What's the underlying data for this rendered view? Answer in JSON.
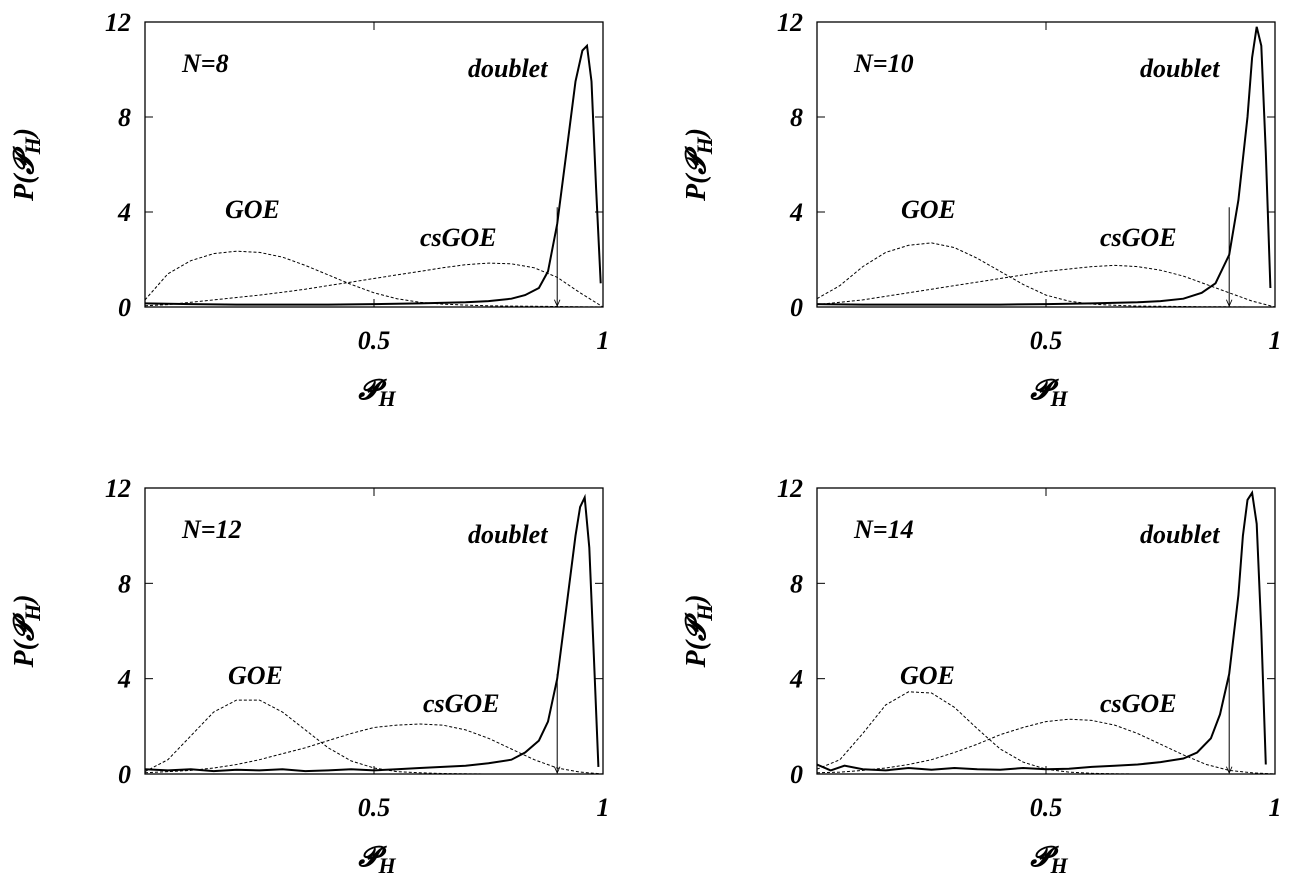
{
  "chart_data": [
    {
      "type": "line",
      "panel_label": "N=8",
      "xlabel": "𝓟H",
      "ylabel": "P(𝓟H)",
      "xlim": [
        0,
        1
      ],
      "ylim": [
        0,
        12
      ],
      "xticks": [
        "0.5",
        "1"
      ],
      "yticks": [
        "0",
        "4",
        "8",
        "12"
      ],
      "annotations": [
        "GOE",
        "csGOE",
        "doublet"
      ],
      "arrow": {
        "x": 0.9,
        "y_from": 4.2,
        "y_to": 0
      },
      "series": [
        {
          "style": "dashed",
          "x": [
            0,
            0.05,
            0.1,
            0.15,
            0.2,
            0.25,
            0.3,
            0.35,
            0.4,
            0.45,
            0.5,
            0.55,
            0.6,
            0.65,
            0.7,
            0.75,
            0.8,
            0.85,
            0.9,
            0.95,
            1.0
          ],
          "y": [
            0.3,
            1.4,
            1.95,
            2.25,
            2.35,
            2.3,
            2.1,
            1.75,
            1.35,
            0.95,
            0.6,
            0.35,
            0.2,
            0.12,
            0.08,
            0.05,
            0.04,
            0.03,
            0.02,
            0.01,
            0.0
          ]
        },
        {
          "style": "dashed",
          "x": [
            0,
            0.05,
            0.1,
            0.15,
            0.2,
            0.25,
            0.3,
            0.35,
            0.4,
            0.45,
            0.5,
            0.55,
            0.6,
            0.65,
            0.7,
            0.75,
            0.8,
            0.85,
            0.9,
            0.95,
            1.0
          ],
          "y": [
            0.05,
            0.1,
            0.2,
            0.3,
            0.4,
            0.5,
            0.62,
            0.75,
            0.9,
            1.05,
            1.2,
            1.35,
            1.5,
            1.65,
            1.78,
            1.85,
            1.82,
            1.65,
            1.25,
            0.6,
            0.0
          ]
        },
        {
          "style": "solid",
          "x": [
            0,
            0.1,
            0.2,
            0.3,
            0.4,
            0.5,
            0.6,
            0.7,
            0.75,
            0.8,
            0.83,
            0.86,
            0.88,
            0.9,
            0.92,
            0.94,
            0.955,
            0.965,
            0.975,
            0.985,
            0.995
          ],
          "y": [
            0.15,
            0.12,
            0.1,
            0.1,
            0.1,
            0.12,
            0.15,
            0.2,
            0.25,
            0.35,
            0.5,
            0.8,
            1.5,
            3.5,
            6.5,
            9.5,
            10.8,
            11.0,
            9.5,
            5.0,
            1.0
          ]
        }
      ]
    },
    {
      "type": "line",
      "panel_label": "N=10",
      "xlabel": "𝓟H",
      "ylabel": "P(𝓟H)",
      "xlim": [
        0,
        1
      ],
      "ylim": [
        0,
        12
      ],
      "xticks": [
        "0.5",
        "1"
      ],
      "yticks": [
        "0",
        "4",
        "8",
        "12"
      ],
      "annotations": [
        "GOE",
        "csGOE",
        "doublet"
      ],
      "arrow": {
        "x": 0.9,
        "y_from": 4.2,
        "y_to": 0
      },
      "series": [
        {
          "style": "dashed",
          "x": [
            0,
            0.05,
            0.1,
            0.15,
            0.2,
            0.25,
            0.3,
            0.35,
            0.4,
            0.45,
            0.5,
            0.55,
            0.6,
            0.65,
            0.7,
            0.75,
            0.8,
            0.85,
            0.9,
            0.95,
            1.0
          ],
          "y": [
            0.35,
            0.9,
            1.7,
            2.3,
            2.6,
            2.7,
            2.5,
            2.05,
            1.5,
            0.95,
            0.5,
            0.25,
            0.12,
            0.07,
            0.04,
            0.03,
            0.02,
            0.01,
            0.01,
            0.0,
            0.0
          ]
        },
        {
          "style": "dashed",
          "x": [
            0,
            0.05,
            0.1,
            0.15,
            0.2,
            0.25,
            0.3,
            0.35,
            0.4,
            0.45,
            0.5,
            0.55,
            0.6,
            0.65,
            0.7,
            0.75,
            0.8,
            0.85,
            0.9,
            0.95,
            1.0
          ],
          "y": [
            0.1,
            0.2,
            0.3,
            0.45,
            0.6,
            0.75,
            0.9,
            1.05,
            1.2,
            1.35,
            1.5,
            1.6,
            1.7,
            1.75,
            1.7,
            1.55,
            1.3,
            0.95,
            0.6,
            0.25,
            0.0
          ]
        },
        {
          "style": "solid",
          "x": [
            0,
            0.1,
            0.2,
            0.3,
            0.4,
            0.5,
            0.6,
            0.7,
            0.75,
            0.8,
            0.84,
            0.87,
            0.9,
            0.92,
            0.94,
            0.95,
            0.96,
            0.97,
            0.98,
            0.99
          ],
          "y": [
            0.12,
            0.1,
            0.1,
            0.1,
            0.1,
            0.12,
            0.15,
            0.2,
            0.25,
            0.35,
            0.6,
            1.0,
            2.2,
            4.5,
            8.0,
            10.5,
            11.8,
            11.0,
            6.5,
            0.8
          ]
        }
      ]
    },
    {
      "type": "line",
      "panel_label": "N=12",
      "xlabel": "𝓟H",
      "ylabel": "P(𝓟H)",
      "xlim": [
        0,
        1
      ],
      "ylim": [
        0,
        12
      ],
      "xticks": [
        "0.5",
        "1"
      ],
      "yticks": [
        "0",
        "4",
        "8",
        "12"
      ],
      "annotations": [
        "GOE",
        "csGOE",
        "doublet"
      ],
      "arrow": {
        "x": 0.9,
        "y_from": 4.2,
        "y_to": 0
      },
      "series": [
        {
          "style": "dashed",
          "x": [
            0,
            0.05,
            0.1,
            0.15,
            0.2,
            0.25,
            0.3,
            0.35,
            0.4,
            0.45,
            0.5,
            0.55,
            0.6,
            0.65,
            0.7,
            0.75,
            0.8,
            0.85,
            0.9,
            0.95,
            1.0
          ],
          "y": [
            0.1,
            0.6,
            1.6,
            2.6,
            3.1,
            3.1,
            2.6,
            1.85,
            1.1,
            0.55,
            0.25,
            0.1,
            0.05,
            0.02,
            0.01,
            0.0,
            0.0,
            0.0,
            0.0,
            0.0,
            0.0
          ]
        },
        {
          "style": "dashed",
          "x": [
            0,
            0.05,
            0.1,
            0.15,
            0.2,
            0.25,
            0.3,
            0.35,
            0.4,
            0.45,
            0.5,
            0.55,
            0.6,
            0.65,
            0.7,
            0.75,
            0.8,
            0.85,
            0.9,
            0.95,
            1.0
          ],
          "y": [
            0.05,
            0.1,
            0.15,
            0.25,
            0.4,
            0.6,
            0.85,
            1.1,
            1.4,
            1.7,
            1.95,
            2.05,
            2.1,
            2.05,
            1.85,
            1.5,
            1.05,
            0.6,
            0.25,
            0.08,
            0.0
          ]
        },
        {
          "style": "solid",
          "x": [
            0,
            0.05,
            0.1,
            0.15,
            0.2,
            0.25,
            0.3,
            0.35,
            0.4,
            0.45,
            0.5,
            0.55,
            0.6,
            0.65,
            0.7,
            0.75,
            0.8,
            0.83,
            0.86,
            0.88,
            0.9,
            0.92,
            0.94,
            0.95,
            0.96,
            0.97,
            0.98,
            0.99
          ],
          "y": [
            0.2,
            0.15,
            0.2,
            0.12,
            0.18,
            0.15,
            0.2,
            0.12,
            0.15,
            0.2,
            0.15,
            0.2,
            0.25,
            0.3,
            0.35,
            0.45,
            0.6,
            0.9,
            1.4,
            2.2,
            4.0,
            7.0,
            10.0,
            11.2,
            11.6,
            9.5,
            5.0,
            0.3
          ]
        }
      ]
    },
    {
      "type": "line",
      "panel_label": "N=14",
      "xlabel": "𝓟H",
      "ylabel": "P(𝓟H)",
      "xlim": [
        0,
        1
      ],
      "ylim": [
        0,
        12
      ],
      "xticks": [
        "0.5",
        "1"
      ],
      "yticks": [
        "0",
        "4",
        "8",
        "12"
      ],
      "annotations": [
        "GOE",
        "csGOE",
        "doublet"
      ],
      "arrow": {
        "x": 0.9,
        "y_from": 4.2,
        "y_to": 0
      },
      "series": [
        {
          "style": "dashed",
          "x": [
            0,
            0.05,
            0.1,
            0.15,
            0.2,
            0.25,
            0.3,
            0.35,
            0.4,
            0.45,
            0.5,
            0.55,
            0.6,
            0.65,
            0.7,
            0.75,
            0.8,
            0.85,
            0.9,
            0.95,
            1.0
          ],
          "y": [
            0.2,
            0.6,
            1.7,
            2.9,
            3.45,
            3.4,
            2.8,
            1.9,
            1.05,
            0.5,
            0.2,
            0.08,
            0.03,
            0.01,
            0.0,
            0.0,
            0.0,
            0.0,
            0.0,
            0.0,
            0.0
          ]
        },
        {
          "style": "dashed",
          "x": [
            0,
            0.05,
            0.1,
            0.15,
            0.2,
            0.25,
            0.3,
            0.35,
            0.4,
            0.45,
            0.5,
            0.55,
            0.6,
            0.65,
            0.7,
            0.75,
            0.8,
            0.85,
            0.9,
            0.95,
            1.0
          ],
          "y": [
            0.05,
            0.08,
            0.15,
            0.25,
            0.4,
            0.6,
            0.9,
            1.25,
            1.65,
            1.95,
            2.2,
            2.3,
            2.25,
            2.05,
            1.7,
            1.25,
            0.8,
            0.4,
            0.15,
            0.05,
            0.0
          ]
        },
        {
          "style": "solid",
          "x": [
            0,
            0.03,
            0.06,
            0.1,
            0.15,
            0.2,
            0.25,
            0.3,
            0.35,
            0.4,
            0.45,
            0.5,
            0.55,
            0.6,
            0.65,
            0.7,
            0.75,
            0.8,
            0.83,
            0.86,
            0.88,
            0.9,
            0.92,
            0.93,
            0.94,
            0.95,
            0.96,
            0.97,
            0.98
          ],
          "y": [
            0.4,
            0.15,
            0.35,
            0.2,
            0.15,
            0.25,
            0.18,
            0.25,
            0.2,
            0.18,
            0.25,
            0.2,
            0.22,
            0.3,
            0.35,
            0.4,
            0.5,
            0.65,
            0.9,
            1.5,
            2.5,
            4.2,
            7.5,
            10.0,
            11.5,
            11.8,
            10.5,
            6.0,
            0.4
          ]
        }
      ]
    }
  ]
}
